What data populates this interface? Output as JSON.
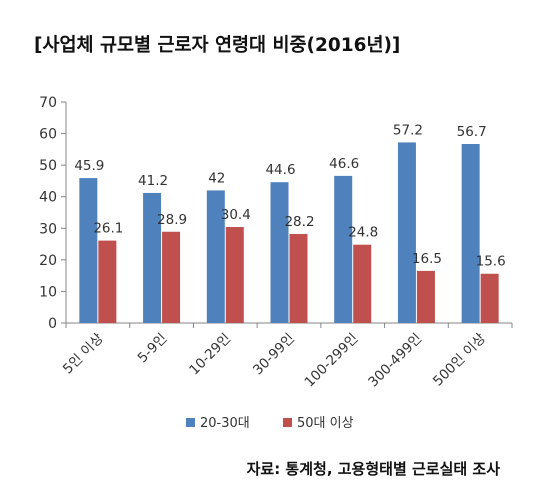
{
  "chart_data": {
    "type": "bar",
    "title": "[사업체 규모별 근로자 연령대 비중(2016년)]",
    "categories": [
      "5인 이상",
      "5-9인",
      "10-29인",
      "30-99인",
      "100-299인",
      "300-499인",
      "500인 이상"
    ],
    "series": [
      {
        "name": "20-30대",
        "values": [
          45.9,
          41.2,
          42,
          44.6,
          46.6,
          57.2,
          56.7
        ],
        "color": "#4f81bd"
      },
      {
        "name": "50대 이상",
        "values": [
          26.1,
          28.9,
          30.4,
          28.2,
          24.8,
          16.5,
          15.6
        ],
        "color": "#c0504d"
      }
    ],
    "ylim": [
      0,
      70
    ],
    "yticks": [
      0,
      10,
      20,
      30,
      40,
      50,
      60,
      70
    ],
    "legend_position": "bottom",
    "grid": false,
    "source": "자료: 통계청, 고용형태별 근로실태 조사"
  }
}
